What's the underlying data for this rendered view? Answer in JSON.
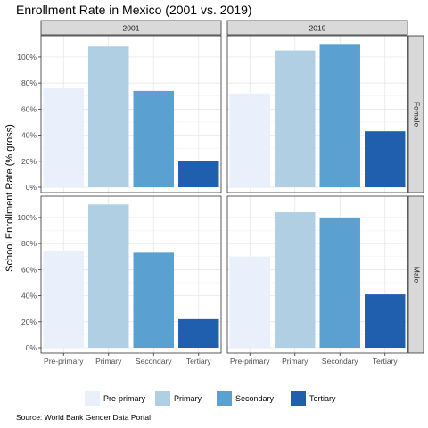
{
  "chart_data": {
    "type": "bar",
    "title": "Enrollment Rate in Mexico (2001 vs. 2019)",
    "ylabel": "School Enrollment Rate (% gross)",
    "xlabel": "",
    "caption": "Source: World Bank Gender Data Portal",
    "categories": [
      "Pre-primary",
      "Primary",
      "Secondary",
      "Tertiary"
    ],
    "colors": {
      "Pre-primary": "#eaf0fb",
      "Primary": "#b0cfe3",
      "Secondary": "#5aa0d0",
      "Tertiary": "#1f5fad"
    },
    "ylim": [
      0,
      1.15
    ],
    "yticks": [
      0,
      0.2,
      0.4,
      0.6,
      0.8,
      1.0
    ],
    "ytick_labels": [
      "0%",
      "20%",
      "40%",
      "60%",
      "80%",
      "100%"
    ],
    "columns": [
      "2001",
      "2019"
    ],
    "rows": [
      "Female",
      "Male"
    ],
    "panels": [
      {
        "col": "2001",
        "row": "Female",
        "values": [
          0.76,
          1.08,
          0.74,
          0.2
        ]
      },
      {
        "col": "2019",
        "row": "Female",
        "values": [
          0.72,
          1.05,
          1.1,
          0.43
        ]
      },
      {
        "col": "2001",
        "row": "Male",
        "values": [
          0.74,
          1.1,
          0.73,
          0.22
        ]
      },
      {
        "col": "2019",
        "row": "Male",
        "values": [
          0.7,
          1.04,
          1.0,
          0.41
        ]
      }
    ],
    "legend_position": "bottom",
    "grid": true
  }
}
